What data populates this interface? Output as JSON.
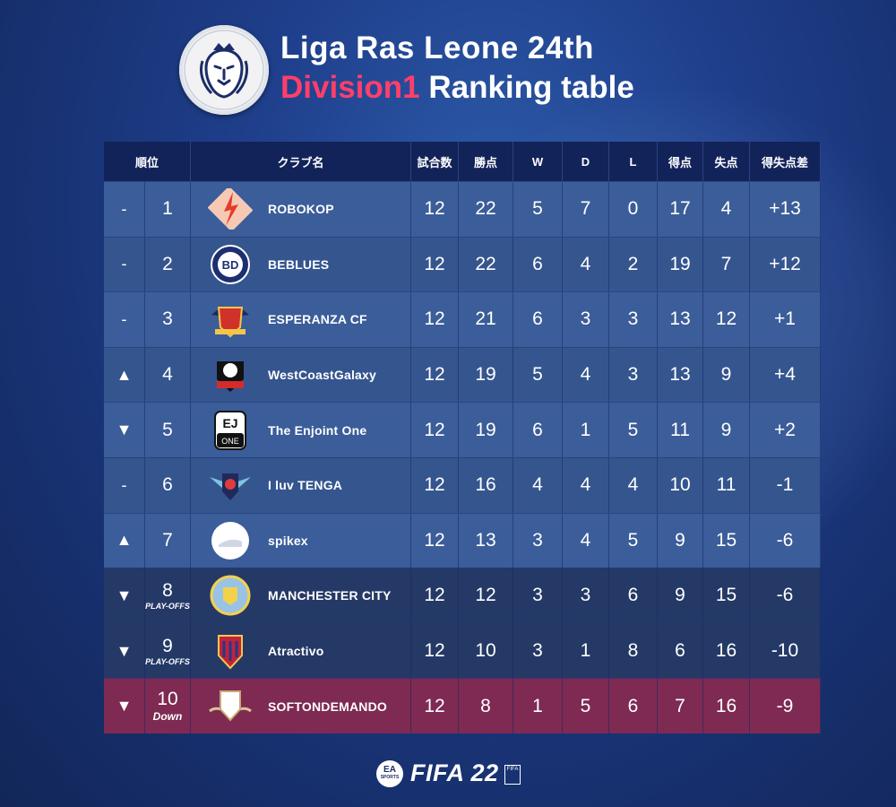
{
  "title": {
    "line1": "Liga Ras Leone 24th",
    "line2_accent": "Division1",
    "line2_rest": " Ranking table"
  },
  "logo_text": "Liga Ras Leone",
  "colors": {
    "accent": "#ff3f6a",
    "header_bg": "#12235a",
    "row_bg": "#3b5d99",
    "playoff_bg": "#253967",
    "down_bg": "#7e2a52"
  },
  "table": {
    "headers": {
      "rank": "順位",
      "club": "クラブ名",
      "played": "試合数",
      "points": "勝点",
      "w": "W",
      "d": "D",
      "l": "L",
      "gf": "得点",
      "ga": "失点",
      "gd": "得失点差"
    },
    "rows": [
      {
        "move": "-",
        "rank": "1",
        "sub": "",
        "club": "ROBOKOP",
        "crest": "robokop-crest-icon",
        "played": "12",
        "points": "22",
        "w": "5",
        "d": "7",
        "l": "0",
        "gf": "17",
        "ga": "4",
        "gd": "+13"
      },
      {
        "move": "-",
        "rank": "2",
        "sub": "",
        "club": "BEBLUES",
        "crest": "beblues-crest-icon",
        "played": "12",
        "points": "22",
        "w": "6",
        "d": "4",
        "l": "2",
        "gf": "19",
        "ga": "7",
        "gd": "+12"
      },
      {
        "move": "-",
        "rank": "3",
        "sub": "",
        "club": "ESPERANZA CF",
        "crest": "esperanza-crest-icon",
        "played": "12",
        "points": "21",
        "w": "6",
        "d": "3",
        "l": "3",
        "gf": "13",
        "ga": "12",
        "gd": "+1"
      },
      {
        "move": "▲",
        "rank": "4",
        "sub": "",
        "club": "WestCoastGalaxy",
        "crest": "westcoastgalaxy-crest-icon",
        "played": "12",
        "points": "19",
        "w": "5",
        "d": "4",
        "l": "3",
        "gf": "13",
        "ga": "9",
        "gd": "+4"
      },
      {
        "move": "▼",
        "rank": "5",
        "sub": "",
        "club": "The Enjoint One",
        "crest": "enjoint-one-crest-icon",
        "played": "12",
        "points": "19",
        "w": "6",
        "d": "1",
        "l": "5",
        "gf": "11",
        "ga": "9",
        "gd": "+2"
      },
      {
        "move": "-",
        "rank": "6",
        "sub": "",
        "club": "I luv TENGA",
        "crest": "iluvtenga-crest-icon",
        "played": "12",
        "points": "16",
        "w": "4",
        "d": "4",
        "l": "4",
        "gf": "10",
        "ga": "11",
        "gd": "-1"
      },
      {
        "move": "▲",
        "rank": "7",
        "sub": "",
        "club": "spikex",
        "crest": "spikex-crest-icon",
        "played": "12",
        "points": "13",
        "w": "3",
        "d": "4",
        "l": "5",
        "gf": "9",
        "ga": "15",
        "gd": "-6"
      },
      {
        "move": "▼",
        "rank": "8",
        "sub": "PLAY-OFFS",
        "club": "MANCHESTER CITY",
        "crest": "manchester-city-crest-icon",
        "played": "12",
        "points": "12",
        "w": "3",
        "d": "3",
        "l": "6",
        "gf": "9",
        "ga": "15",
        "gd": "-6"
      },
      {
        "move": "▼",
        "rank": "9",
        "sub": "PLAY-OFFS",
        "club": "Atractivo",
        "crest": "atractivo-crest-icon",
        "played": "12",
        "points": "10",
        "w": "3",
        "d": "1",
        "l": "8",
        "gf": "6",
        "ga": "16",
        "gd": "-10"
      },
      {
        "move": "▼",
        "rank": "10",
        "sub": "Down",
        "club": "SOFTONDEMANDO",
        "crest": "softondemando-crest-icon",
        "played": "12",
        "points": "8",
        "w": "1",
        "d": "5",
        "l": "6",
        "gf": "7",
        "ga": "16",
        "gd": "-9"
      }
    ]
  },
  "footer": {
    "ea_line1": "EA",
    "ea_line2": "SPORTS",
    "game": "FIFA 22",
    "badge": "FIFA"
  }
}
